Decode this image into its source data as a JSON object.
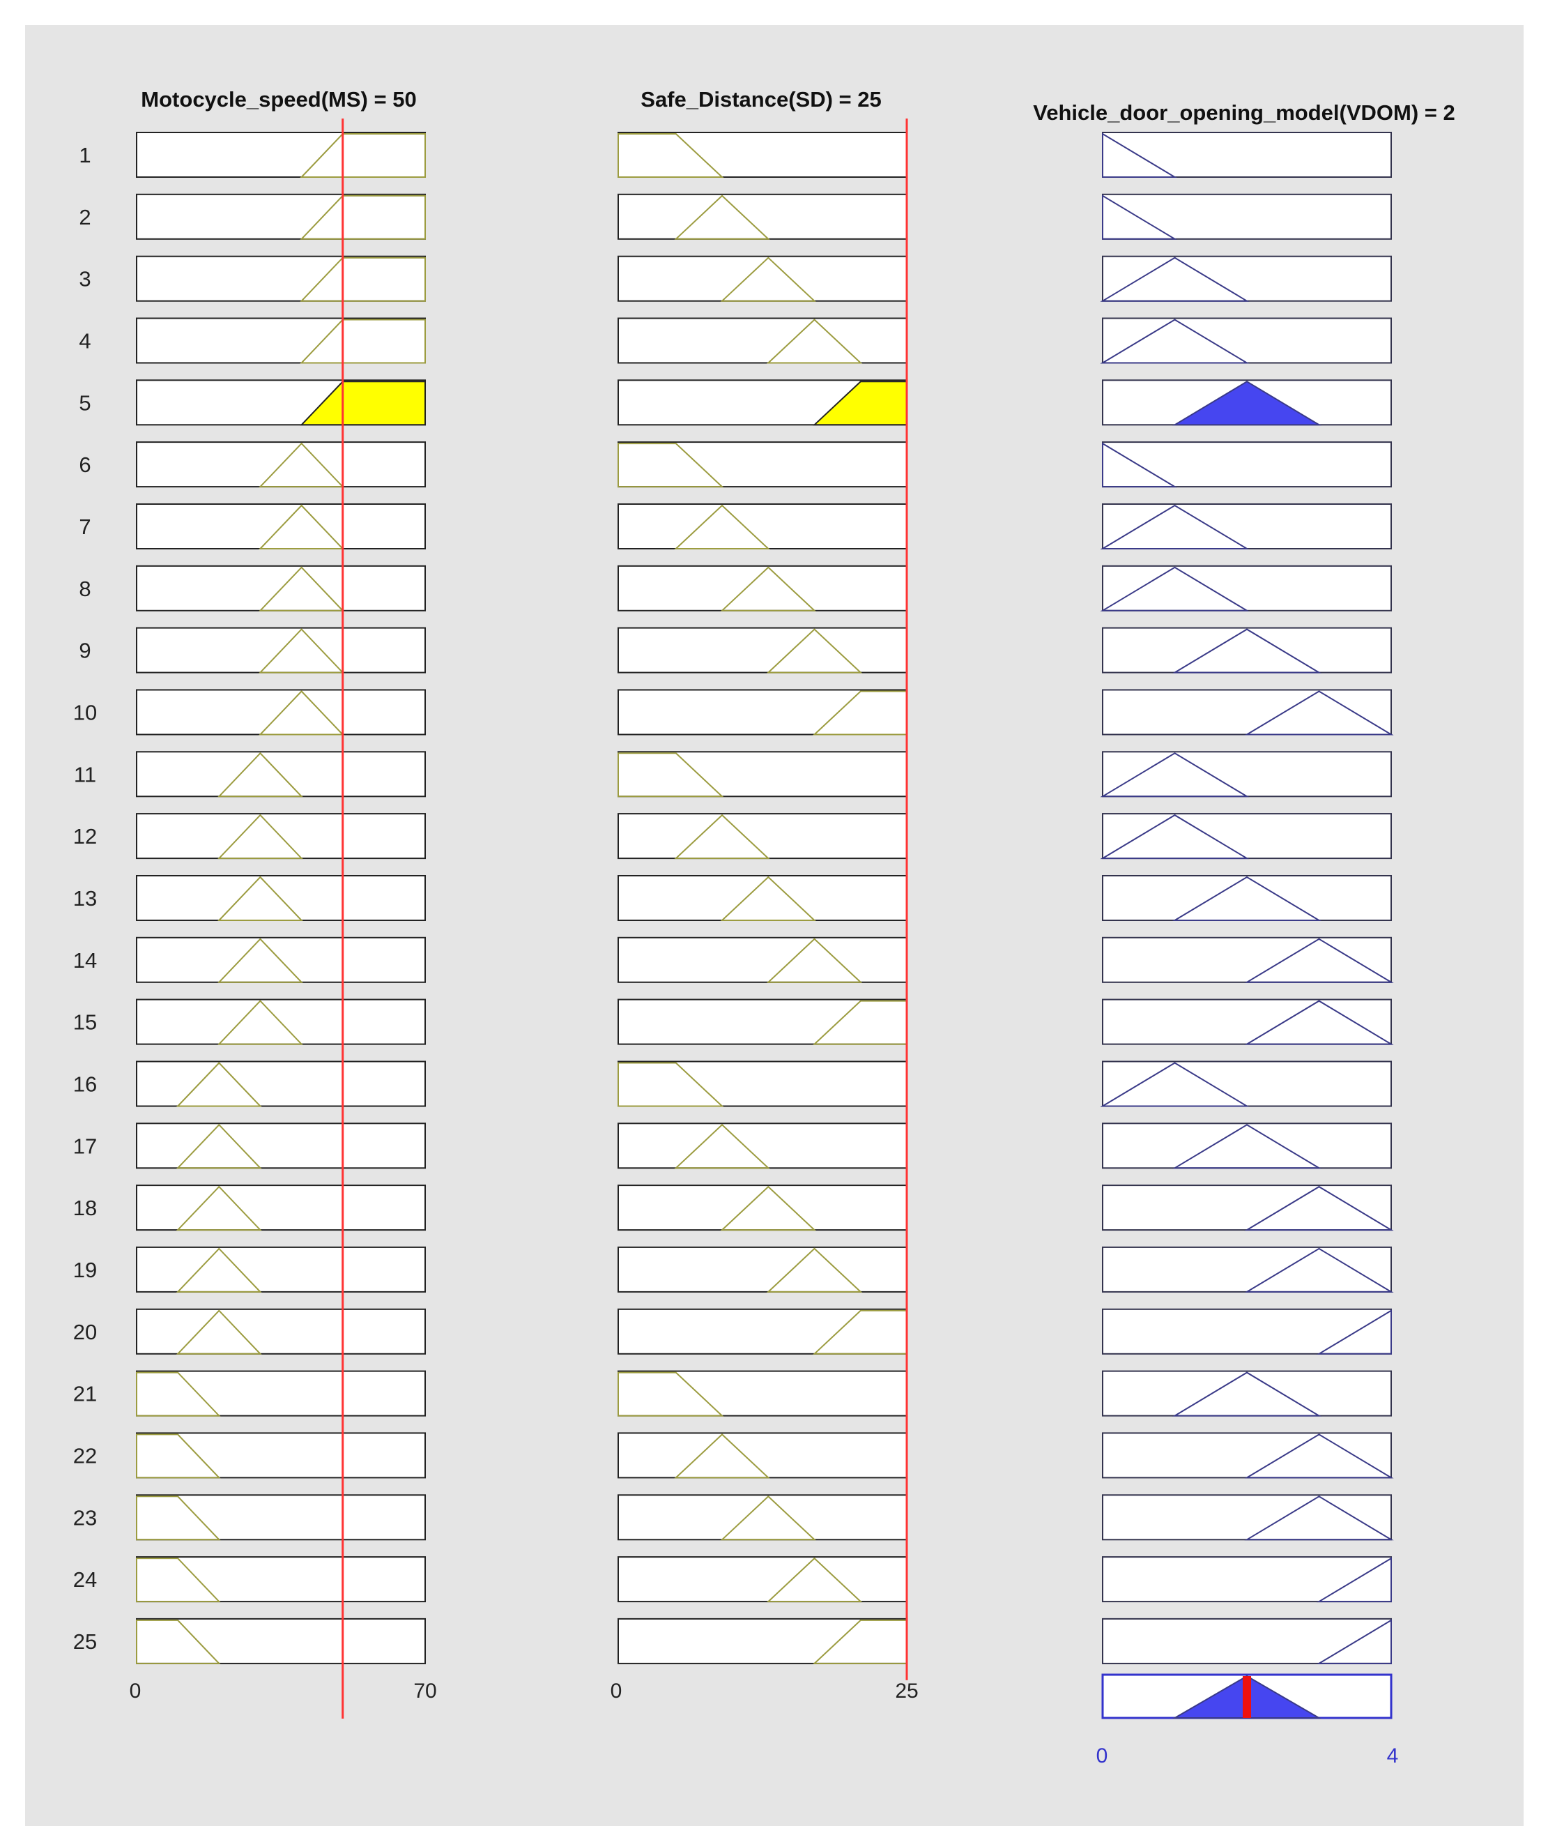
{
  "chart_data": {
    "type": "fuzzy-rule-viewer",
    "columns": [
      {
        "title": "Motocycle_speed(MS) = 50",
        "range": [
          0,
          70
        ],
        "ticks": [
          "0",
          "70"
        ],
        "input_value": 50,
        "rules": [
          [
            40,
            50,
            70,
            70
          ],
          [
            40,
            50,
            70,
            70
          ],
          [
            40,
            50,
            70,
            70
          ],
          [
            40,
            50,
            70,
            70
          ],
          [
            40,
            50,
            70,
            70
          ],
          [
            30,
            40,
            50
          ],
          [
            30,
            40,
            50
          ],
          [
            30,
            40,
            50
          ],
          [
            30,
            40,
            50
          ],
          [
            30,
            40,
            50
          ],
          [
            20,
            30,
            40
          ],
          [
            20,
            30,
            40
          ],
          [
            20,
            30,
            40
          ],
          [
            20,
            30,
            40
          ],
          [
            20,
            30,
            40
          ],
          [
            10,
            20,
            30
          ],
          [
            10,
            20,
            30
          ],
          [
            10,
            20,
            30
          ],
          [
            10,
            20,
            30
          ],
          [
            10,
            20,
            30
          ],
          [
            0,
            0,
            10,
            20
          ],
          [
            0,
            0,
            10,
            20
          ],
          [
            0,
            0,
            10,
            20
          ],
          [
            0,
            0,
            10,
            20
          ],
          [
            0,
            0,
            10,
            20
          ]
        ]
      },
      {
        "title": "Safe_Distance(SD) = 25",
        "range": [
          0,
          25
        ],
        "ticks": [
          "0",
          "25"
        ],
        "input_value": 25,
        "rules": [
          [
            0,
            0,
            5,
            9
          ],
          [
            5,
            9,
            13
          ],
          [
            9,
            13,
            17
          ],
          [
            13,
            17,
            21
          ],
          [
            17,
            21,
            25,
            25
          ],
          [
            0,
            0,
            5,
            9
          ],
          [
            5,
            9,
            13
          ],
          [
            9,
            13,
            17
          ],
          [
            13,
            17,
            21
          ],
          [
            17,
            21,
            25,
            25
          ],
          [
            0,
            0,
            5,
            9
          ],
          [
            5,
            9,
            13
          ],
          [
            9,
            13,
            17
          ],
          [
            13,
            17,
            21
          ],
          [
            17,
            21,
            25,
            25
          ],
          [
            0,
            0,
            5,
            9
          ],
          [
            5,
            9,
            13
          ],
          [
            9,
            13,
            17
          ],
          [
            13,
            17,
            21
          ],
          [
            17,
            21,
            25,
            25
          ],
          [
            0,
            0,
            5,
            9
          ],
          [
            5,
            9,
            13
          ],
          [
            9,
            13,
            17
          ],
          [
            13,
            17,
            21
          ],
          [
            17,
            21,
            25,
            25
          ]
        ]
      },
      {
        "title": "Vehicle_door_opening_model(VDOM) = 2",
        "range": [
          0,
          4
        ],
        "ticks": [
          "0",
          "4"
        ],
        "output_value": 2,
        "rules": [
          [
            0,
            0,
            1
          ],
          [
            0,
            0,
            1
          ],
          [
            0,
            1,
            2
          ],
          [
            0,
            1,
            2
          ],
          [
            1,
            2,
            3
          ],
          [
            0,
            0,
            1
          ],
          [
            0,
            1,
            2
          ],
          [
            0,
            1,
            2
          ],
          [
            1,
            2,
            3
          ],
          [
            2,
            3,
            4
          ],
          [
            0,
            1,
            2
          ],
          [
            0,
            1,
            2
          ],
          [
            1,
            2,
            3
          ],
          [
            2,
            3,
            4
          ],
          [
            2,
            3,
            4
          ],
          [
            0,
            1,
            2
          ],
          [
            1,
            2,
            3
          ],
          [
            2,
            3,
            4
          ],
          [
            2,
            3,
            4
          ],
          [
            3,
            4,
            4
          ],
          [
            1,
            2,
            3
          ],
          [
            2,
            3,
            4
          ],
          [
            2,
            3,
            4
          ],
          [
            3,
            4,
            4
          ],
          [
            3,
            4,
            4
          ]
        ],
        "aggregate": [
          1,
          2,
          3
        ]
      }
    ],
    "rule_labels": [
      "1",
      "2",
      "3",
      "4",
      "5",
      "6",
      "7",
      "8",
      "9",
      "10",
      "11",
      "12",
      "13",
      "14",
      "15",
      "16",
      "17",
      "18",
      "19",
      "20",
      "21",
      "22",
      "23",
      "24",
      "25"
    ],
    "fired_rules": [
      5
    ],
    "colors": {
      "background": "#e5e5e5",
      "fired_fill": "#ffff00",
      "input_mf": "#9c9c40",
      "output_mf": "#3a3a88",
      "output_fill": "#4646f0",
      "value_line": "#ff3333",
      "output_marker": "#ee1111",
      "output_axis": "#3333cc"
    }
  }
}
